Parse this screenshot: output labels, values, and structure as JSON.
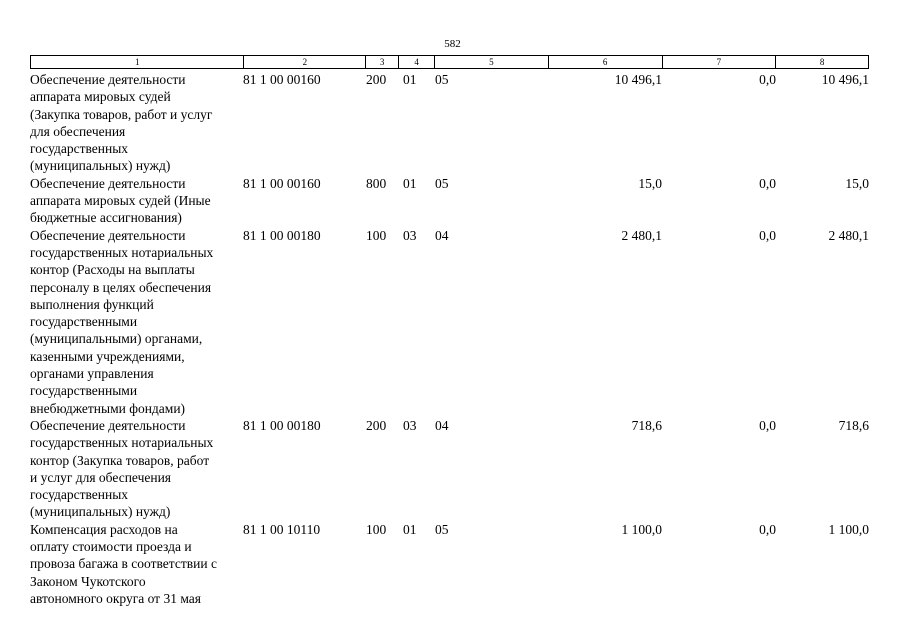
{
  "page_number": "582",
  "table": {
    "header": [
      "1",
      "2",
      "3",
      "4",
      "5",
      "6",
      "7",
      "8"
    ],
    "rows": [
      [
        [
          "Обеспечение деятельности",
          "аппарата мировых судей",
          "(Закупка товаров, работ и услуг",
          "для обеспечения",
          "государственных",
          "(муниципальных) нужд)"
        ],
        "81 1 00 00160",
        "200",
        "01",
        "05",
        "10 496,1",
        "0,0",
        "10 496,1"
      ],
      [
        [
          "Обеспечение деятельности",
          "аппарата мировых судей (Иные",
          "бюджетные ассигнования)"
        ],
        "81 1 00 00160",
        "800",
        "01",
        "05",
        "15,0",
        "0,0",
        "15,0"
      ],
      [
        [
          "Обеспечение деятельности",
          "государственных нотариальных",
          "контор (Расходы на выплаты",
          "персоналу в целях обеспечения",
          "выполнения функций",
          "государственными",
          "(муниципальными) органами,",
          "казенными учреждениями,",
          "органами управления",
          "государственными",
          "внебюджетными фондами)"
        ],
        "81 1 00 00180",
        "100",
        "03",
        "04",
        "2 480,1",
        "0,0",
        "2 480,1"
      ],
      [
        [
          "Обеспечение деятельности",
          "государственных нотариальных",
          "контор (Закупка товаров, работ",
          "и услуг для обеспечения",
          "государственных",
          "(муниципальных) нужд)"
        ],
        "81 1 00 00180",
        "200",
        "03",
        "04",
        "718,6",
        "0,0",
        "718,6"
      ],
      [
        [
          "Компенсация расходов на",
          "оплату стоимости проезда и",
          "провоза багажа в соответствии с",
          "Законом Чукотского",
          "автономного округа от 31 мая"
        ],
        "81 1 00 10110",
        "100",
        "01",
        "05",
        "1 100,0",
        "0,0",
        "1 100,0"
      ]
    ]
  }
}
